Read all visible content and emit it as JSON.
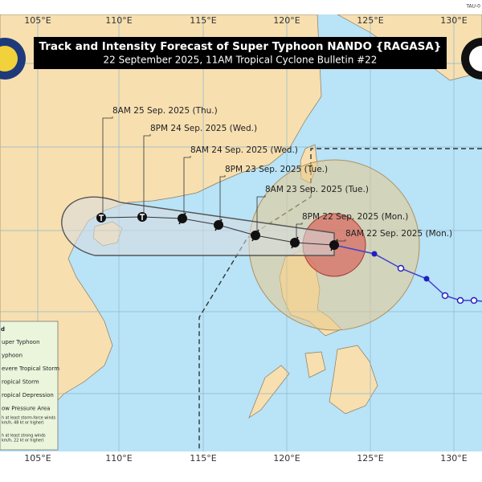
{
  "header": {
    "title": "Track and Intensity Forecast of Super Typhoon NANDO {RAGASA}",
    "subtitle": "22 September 2025, 11AM Tropical Cyclone Bulletin #22"
  },
  "corner_code": "TAU-0",
  "longitudes": [
    "105°E",
    "110°E",
    "115°E",
    "120°E",
    "125°E",
    "130°E"
  ],
  "forecast_labels": [
    "8AM 25 Sep. 2025 (Thu.)",
    "8PM 24 Sep. 2025 (Wed.)",
    "8AM 24 Sep. 2025 (Wed.)",
    "8PM 23 Sep. 2025 (Tue.)",
    "8AM 23 Sep. 2025 (Tue.)",
    "8PM 22 Sep. 2025 (Mon.)",
    "8AM 22 Sep. 2025 (Mon.)"
  ],
  "legend": {
    "title": "d",
    "items": [
      "uper Typhoon",
      "yphoon",
      "evere Tropical Storm",
      "ropical Storm",
      "ropical Depression",
      "ow Pressure Area"
    ],
    "notes": [
      "h at least storm-force winds",
      "km/h, 48 kt or higher)",
      "h at least strong winds",
      "km/h, 22 kt or higher)"
    ]
  }
}
